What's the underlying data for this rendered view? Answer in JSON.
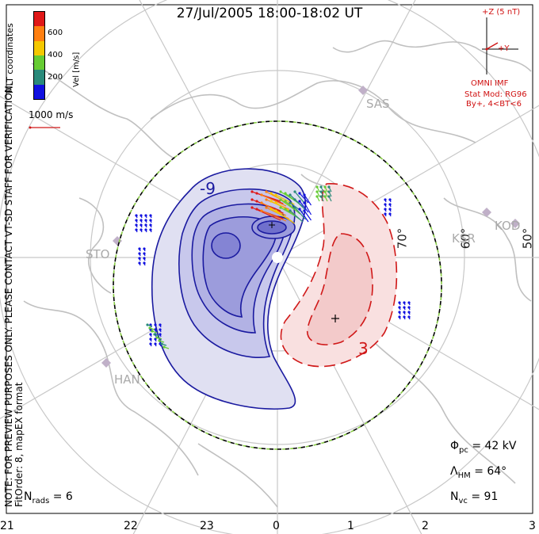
{
  "title": "27/Jul/2005 18:00-18:02 UT",
  "colorbar": {
    "label": "Vel [m/s]",
    "ticks": [
      "600",
      "400",
      "200"
    ],
    "colors": [
      "#e01818",
      "#ff7f10",
      "#f5c800",
      "#66cc33",
      "#2a8a7a",
      "#1010e0"
    ]
  },
  "coord_label": "MLT coordinates",
  "scale_label": "1000 m/s",
  "note_lines": [
    "NOTE: FOR PREVIEW PURPOSES ONLY. PLEASE CONTACT VT-SD STAFF FOR VERIFICATION.",
    "FitOrder: 8, mapEX format"
  ],
  "imf": {
    "z_label": "+Z (5 nT)",
    "y_label": "+Y",
    "source": "OMNI IMF",
    "model": "Stat Mod: RG96",
    "condition": "By+, 4<BT<6"
  },
  "contour_labels": [
    "-9",
    "3"
  ],
  "latitude_labels": [
    "70°",
    "60°",
    "50°"
  ],
  "site_labels": [
    "SAS",
    "KOD",
    "KSR",
    "STO",
    "HAN"
  ],
  "x_ticks": [
    "21",
    "22",
    "23",
    "0",
    "1",
    "2",
    "3"
  ],
  "stats": {
    "n_rads_label": "N",
    "n_rads_sub": "rads",
    "n_rads_value": "= 6",
    "phi_label": "Φ",
    "phi_sub": "pc",
    "phi_value": "= 42 kV",
    "lambda_label": "Λ",
    "lambda_sub": "HM",
    "lambda_value": "= 64°",
    "nvc_label": "N",
    "nvc_sub": "vc",
    "nvc_value": "= 91"
  },
  "colors": {
    "negative": "#1a1aa0",
    "positive": "#d01818",
    "grid": "#c8c8c8",
    "coast": "#c0c0c0",
    "hmb_green": "#88cc44"
  }
}
